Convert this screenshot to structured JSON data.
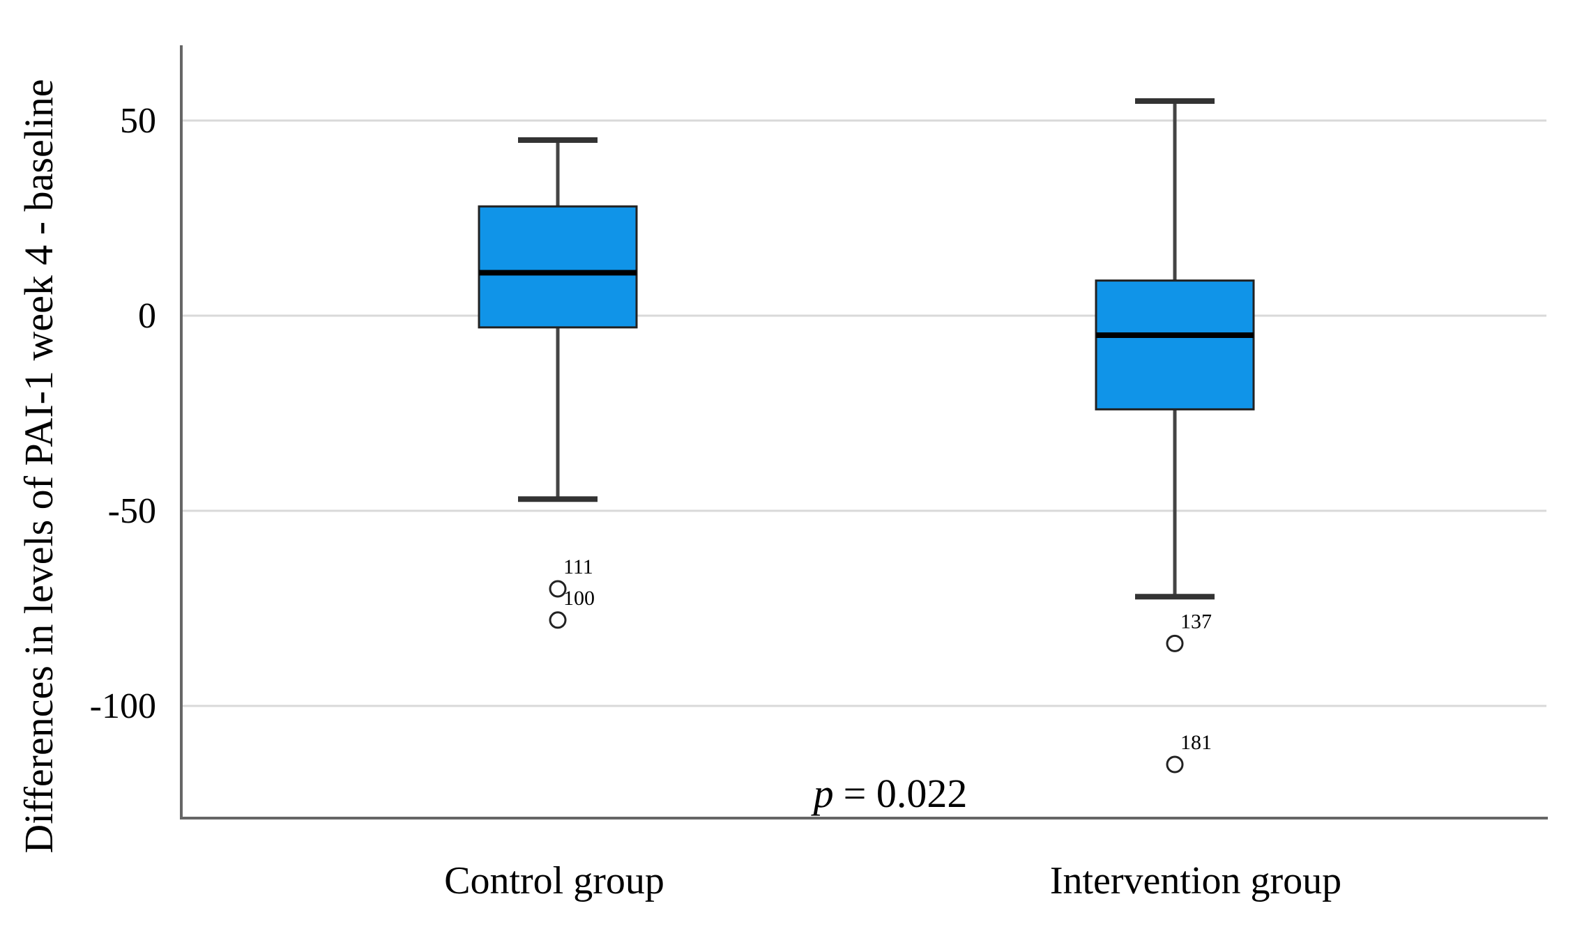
{
  "chart_data": {
    "type": "boxplot",
    "title": "",
    "xlabel": "",
    "ylabel": "Differences in levels of PAI-1 week 4 - baseline",
    "categories": [
      "Control group",
      "Intervention group"
    ],
    "y_axis": {
      "ticks": [
        {
          "label": "50",
          "value": 50
        },
        {
          "label": "0",
          "value": 0
        },
        {
          "label": "-50",
          "value": -50
        },
        {
          "label": "-100",
          "value": -100
        }
      ],
      "ylim": [
        -128,
        69
      ],
      "grid": true
    },
    "series": [
      {
        "name": "Control group",
        "whisker_low": -47,
        "q1": -3,
        "median": 11,
        "q3": 28,
        "whisker_high": 45,
        "outliers": [
          {
            "label": "111",
            "value": -70
          },
          {
            "label": "100",
            "value": -78
          }
        ]
      },
      {
        "name": "Intervention group",
        "whisker_low": -72,
        "q1": -24,
        "median": -5,
        "q3": 9,
        "whisker_high": 55,
        "outliers": [
          {
            "label": "137",
            "value": -84
          },
          {
            "label": "181",
            "value": -115
          }
        ]
      }
    ],
    "annotation": {
      "symbol": "p",
      "rest": "= 0.022"
    },
    "legend": "none",
    "colors": {
      "box_fill": "#1094E8",
      "box_border": "#222222",
      "median_line": "#000000",
      "whisker": "#444444",
      "gridline": "#D9D9D9",
      "axis": "#666666",
      "text": "#000000"
    }
  }
}
